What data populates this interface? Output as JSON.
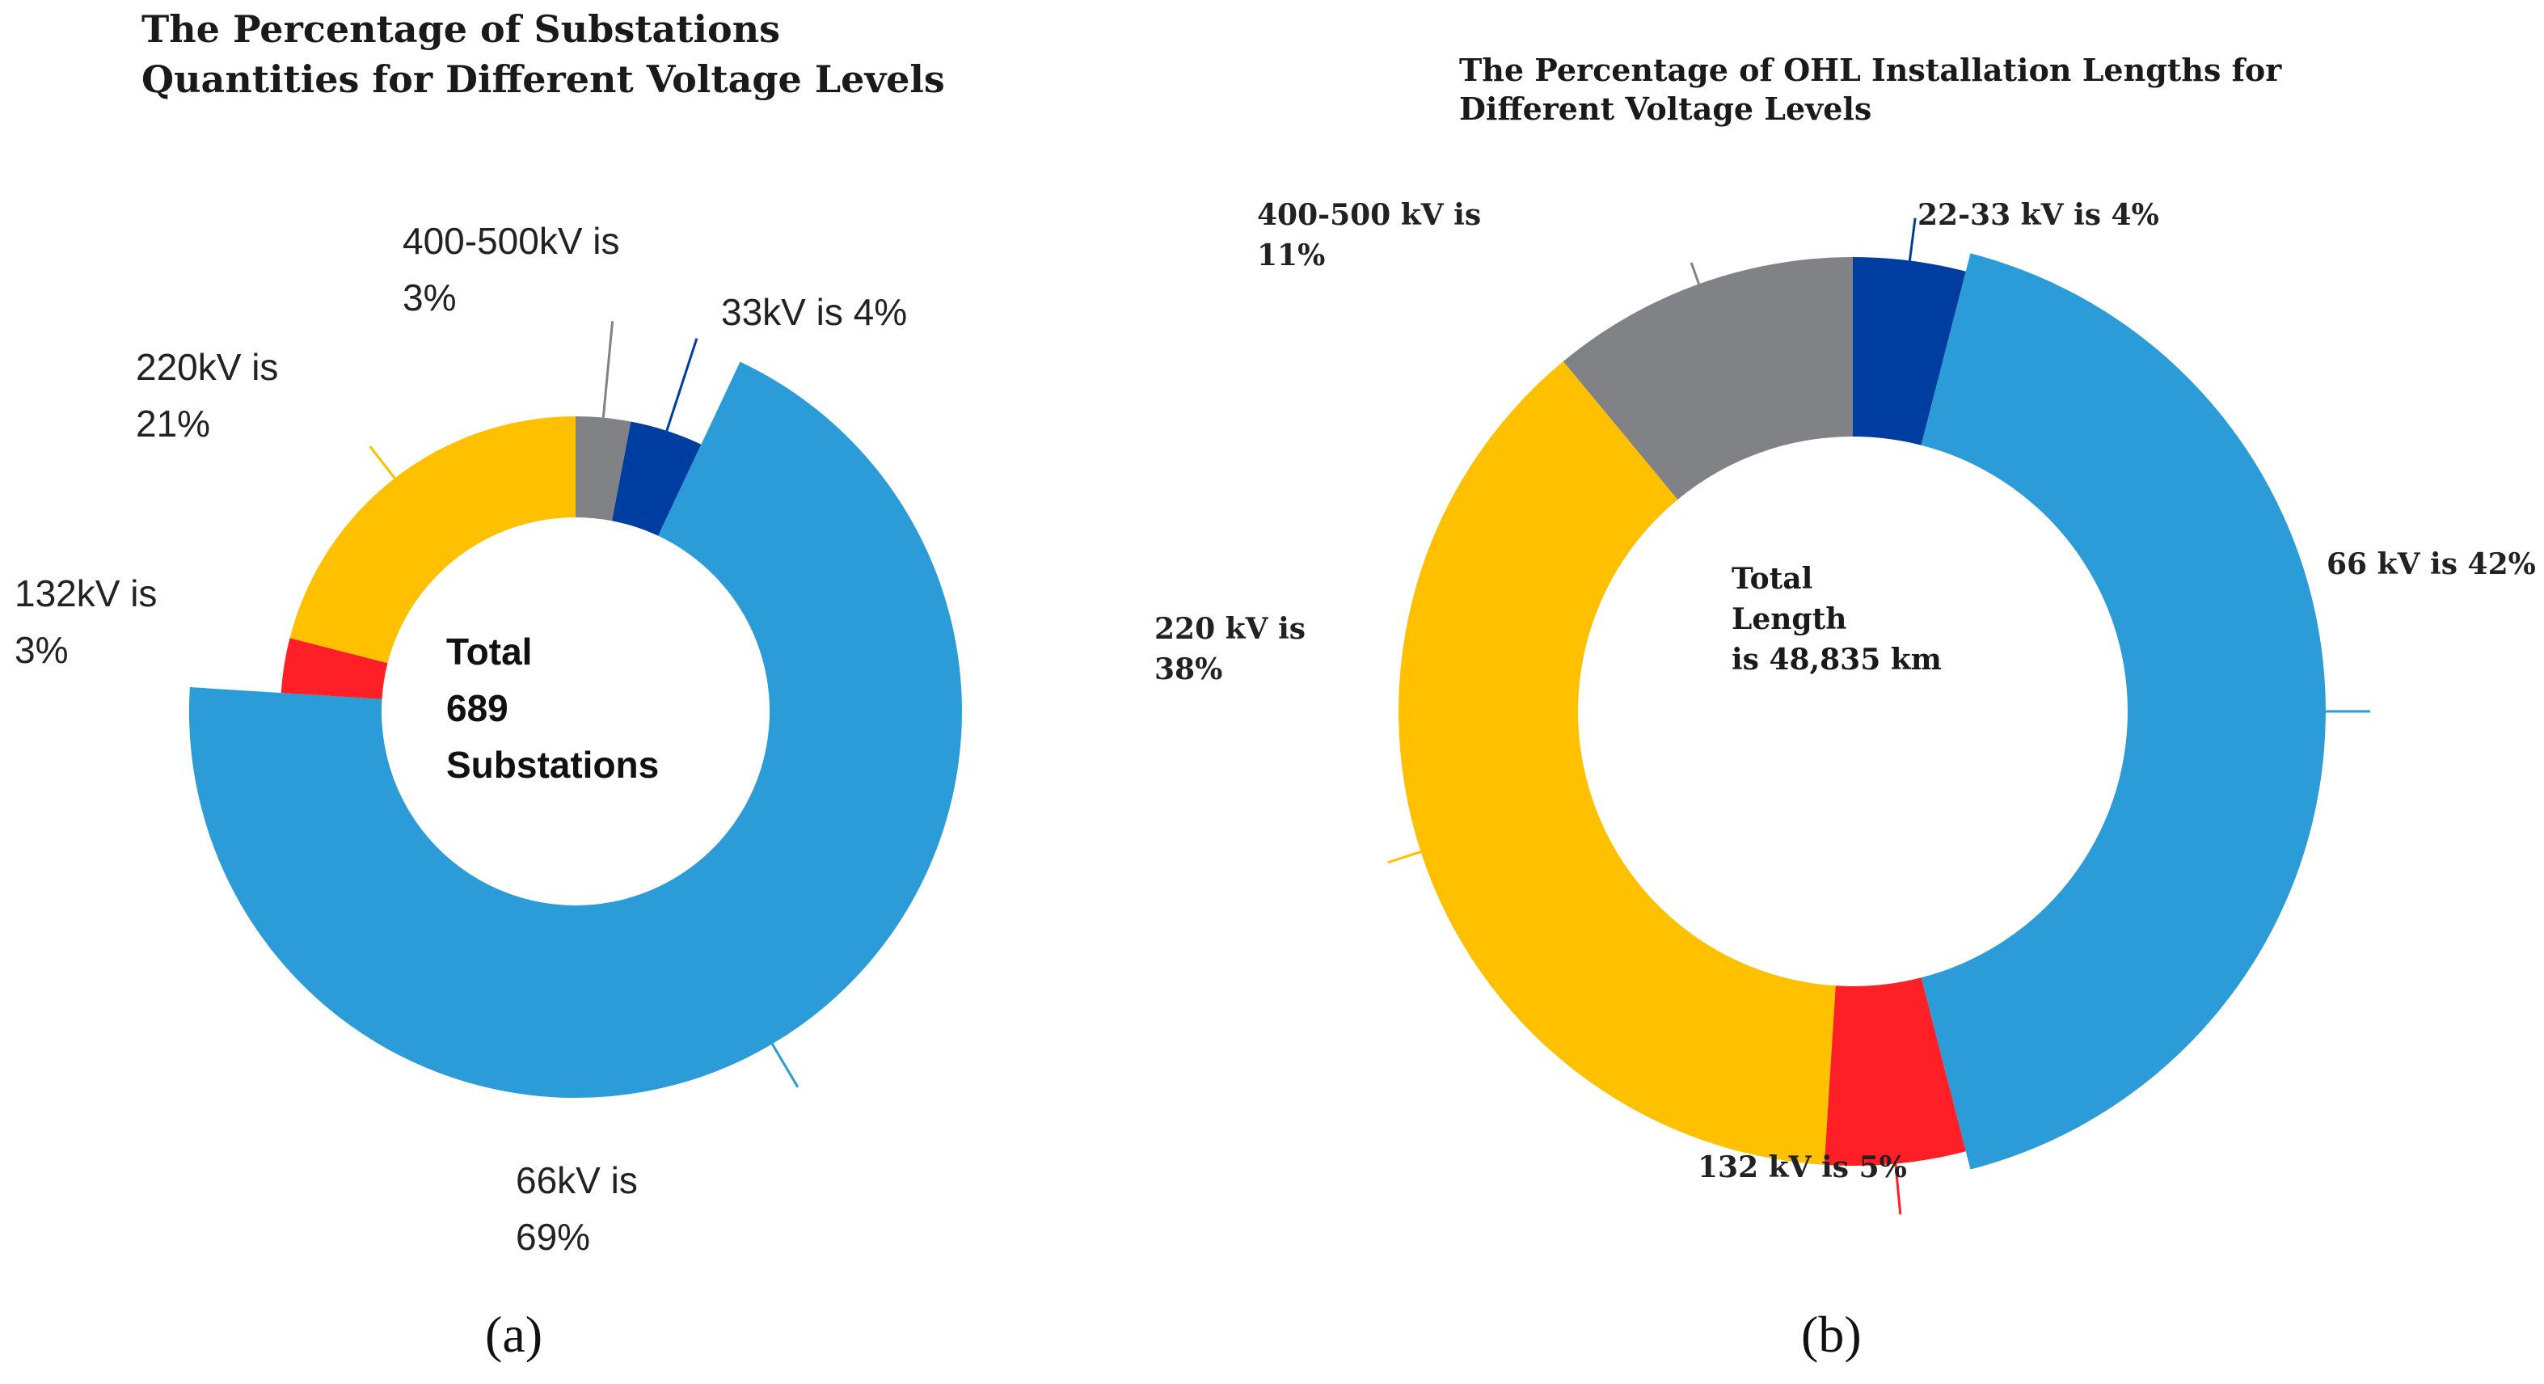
{
  "chart_data": [
    {
      "type": "pie",
      "subtype": "donut",
      "panel": "(a)",
      "title": [
        "The Percentage of Substations",
        "Quantities for Different Voltage Levels"
      ],
      "center_text": [
        "Total",
        "689",
        "Substations"
      ],
      "total": 689,
      "slices": [
        {
          "name": "400-500kV",
          "value": 3,
          "color": "#808285",
          "label": [
            "400-500kV is",
            "3%"
          ]
        },
        {
          "name": "33kV",
          "value": 4,
          "color": "#003DA0",
          "label": [
            "33kV is 4%"
          ]
        },
        {
          "name": "66kV",
          "value": 69,
          "color": "#2B9CD8",
          "label": [
            "66kV is",
            "69%"
          ]
        },
        {
          "name": "132kV",
          "value": 3,
          "color": "#FF1F26",
          "label": [
            "132kV is",
            "3%"
          ]
        },
        {
          "name": "220kV",
          "value": 21,
          "color": "#FFC000",
          "label": [
            "220kV is",
            "21%"
          ]
        }
      ]
    },
    {
      "type": "pie",
      "subtype": "donut",
      "panel": "(b)",
      "title": [
        "The Percentage of OHL Installation Lengths for",
        "Different Voltage Levels"
      ],
      "center_text": [
        "Total",
        "Length",
        "is 48,835 km"
      ],
      "total_km": 48835,
      "slices": [
        {
          "name": "22-33 kV",
          "value": 4,
          "color": "#003DA0",
          "label": [
            "22-33 kV is 4%"
          ]
        },
        {
          "name": "66 kV",
          "value": 42,
          "color": "#2B9CD8",
          "label": [
            "66 kV is 42%"
          ]
        },
        {
          "name": "132 kV",
          "value": 5,
          "color": "#FF1F26",
          "label": [
            "132 kV is 5%"
          ]
        },
        {
          "name": "220 kV",
          "value": 38,
          "color": "#FFC000",
          "label": [
            "220 kV is",
            "38%"
          ]
        },
        {
          "name": "400-500 kV",
          "value": 11,
          "color": "#808285",
          "label": [
            "400-500 kV is",
            "11%"
          ]
        }
      ]
    }
  ]
}
